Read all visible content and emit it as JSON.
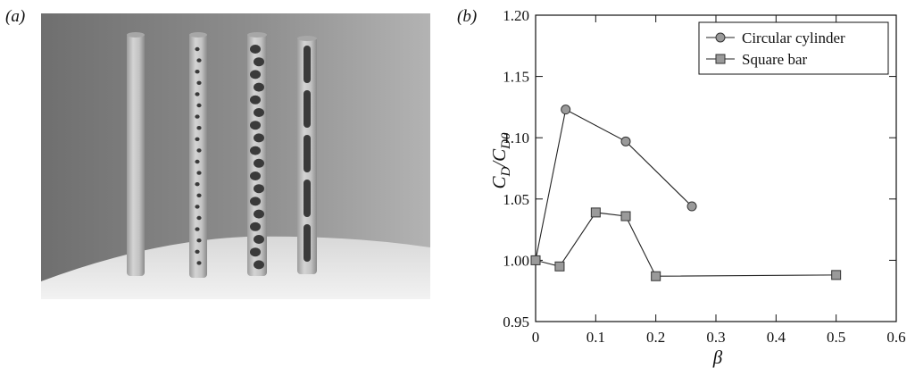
{
  "panels": {
    "a_label": "(a)",
    "b_label": "(b)"
  },
  "photo": {
    "description_icon": "photo-of-four-perforated-tubes"
  },
  "chart_data": {
    "type": "line",
    "xlabel": "β",
    "ylabel_main": "C",
    "ylabel_sub1": "D",
    "ylabel_mid": "/C",
    "ylabel_sub2": "D0",
    "xlim": [
      0,
      0.6
    ],
    "ylim": [
      0.95,
      1.2
    ],
    "xticks": [
      0,
      0.1,
      0.2,
      0.3,
      0.4,
      0.5,
      0.6
    ],
    "xtick_labels": [
      "0",
      "0.1",
      "0.2",
      "0.3",
      "0.4",
      "0.5",
      "0.6"
    ],
    "yticks": [
      0.95,
      1.0,
      1.05,
      1.1,
      1.15,
      1.2
    ],
    "ytick_labels": [
      "0.95",
      "1.00",
      "1.05",
      "1.10",
      "1.15",
      "1.20"
    ],
    "grid": false,
    "legend_position": "top-right",
    "series": [
      {
        "name": "Circular cylinder",
        "marker": "circle",
        "x": [
          0,
          0.05,
          0.15,
          0.26
        ],
        "y": [
          1.0,
          1.123,
          1.097,
          1.044
        ]
      },
      {
        "name": "Square bar",
        "marker": "square",
        "x": [
          0,
          0.04,
          0.1,
          0.15,
          0.2,
          0.5
        ],
        "y": [
          1.0,
          0.995,
          1.039,
          1.036,
          0.987,
          0.988
        ]
      }
    ],
    "colors": {
      "marker_fill": "#9a9a9a",
      "line": "#222222"
    }
  }
}
